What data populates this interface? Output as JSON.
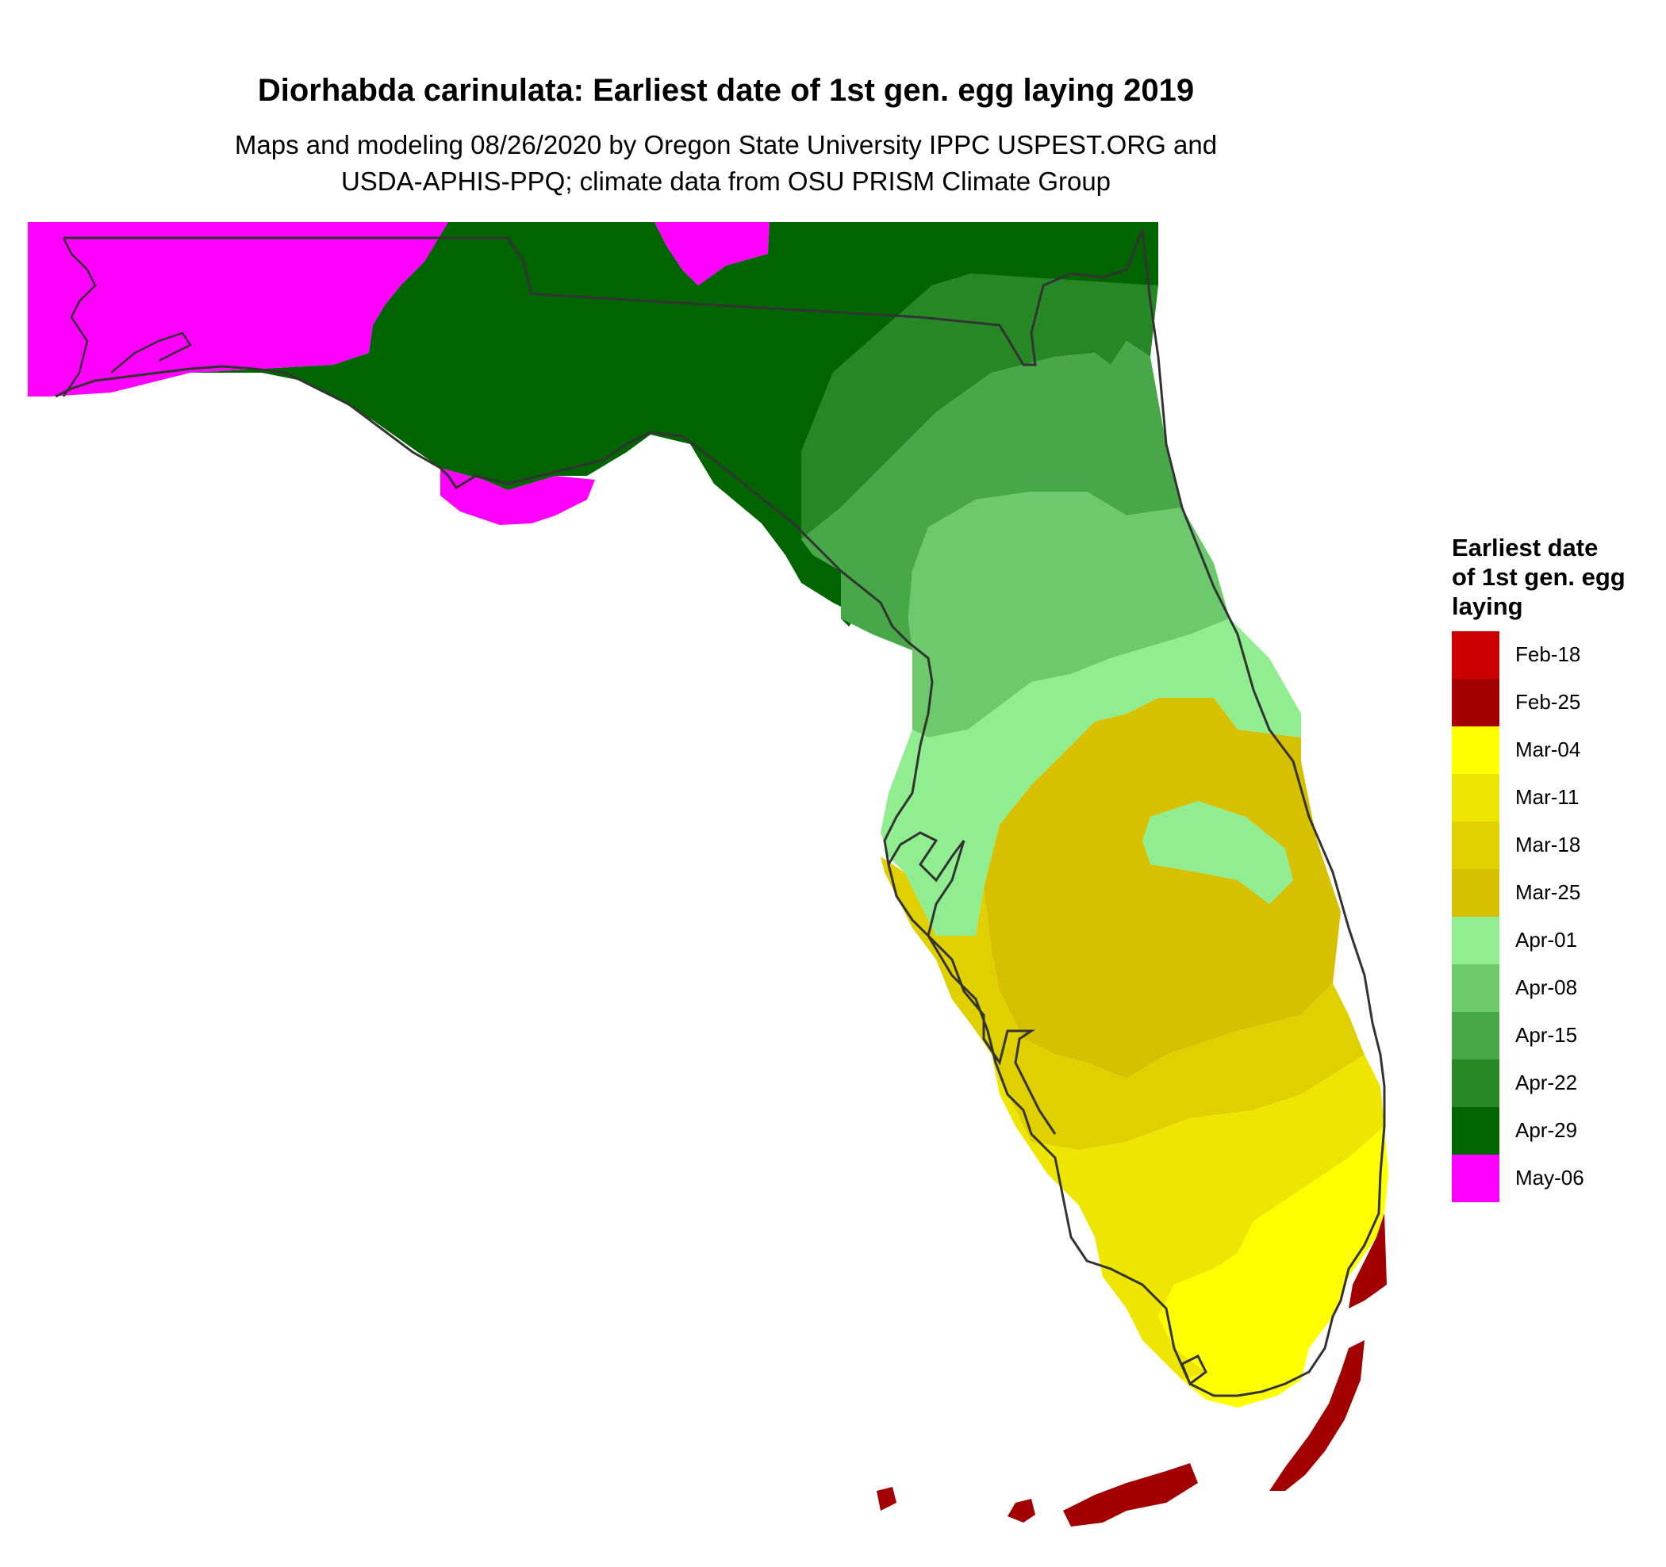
{
  "title": "Diorhabda carinulata: Earliest date of 1st gen. egg laying 2019",
  "subtitle_line1": "Maps and modeling 08/26/2020 by Oregon State University IPPC USPEST.ORG and",
  "subtitle_line2": "USDA-APHIS-PPQ; climate data from OSU PRISM Climate Group",
  "legend": {
    "title_lines": [
      "Earliest date",
      "of 1st gen. egg",
      "laying"
    ],
    "items": [
      {
        "label": "Feb-18",
        "color": "#cc0000"
      },
      {
        "label": "Feb-25",
        "color": "#a30000"
      },
      {
        "label": "Mar-04",
        "color": "#ffff00"
      },
      {
        "label": "Mar-11",
        "color": "#eee600"
      },
      {
        "label": "Mar-18",
        "color": "#e0d000"
      },
      {
        "label": "Mar-25",
        "color": "#d6c000"
      },
      {
        "label": "Apr-01",
        "color": "#90ee90"
      },
      {
        "label": "Apr-08",
        "color": "#6cca6c"
      },
      {
        "label": "Apr-15",
        "color": "#48a848"
      },
      {
        "label": "Apr-22",
        "color": "#258825"
      },
      {
        "label": "Apr-29",
        "color": "#006400"
      },
      {
        "label": "May-06",
        "color": "#ff00ff"
      }
    ]
  },
  "map_regions": [
    {
      "zone": "May-06",
      "area": "western panhandle"
    },
    {
      "zone": "Apr-29",
      "area": "central panhandle and big bend"
    },
    {
      "zone": "Apr-22",
      "area": "northeast"
    },
    {
      "zone": "Apr-15",
      "area": "north central"
    },
    {
      "zone": "Apr-08",
      "area": "central"
    },
    {
      "zone": "Apr-01",
      "area": "central band"
    },
    {
      "zone": "Mar-25",
      "area": "south central"
    },
    {
      "zone": "Mar-18",
      "area": "southwest"
    },
    {
      "zone": "Mar-11",
      "area": "south"
    },
    {
      "zone": "Mar-04",
      "area": "southeast tip"
    },
    {
      "zone": "Feb-25",
      "area": "keys and southeast coast"
    }
  ]
}
